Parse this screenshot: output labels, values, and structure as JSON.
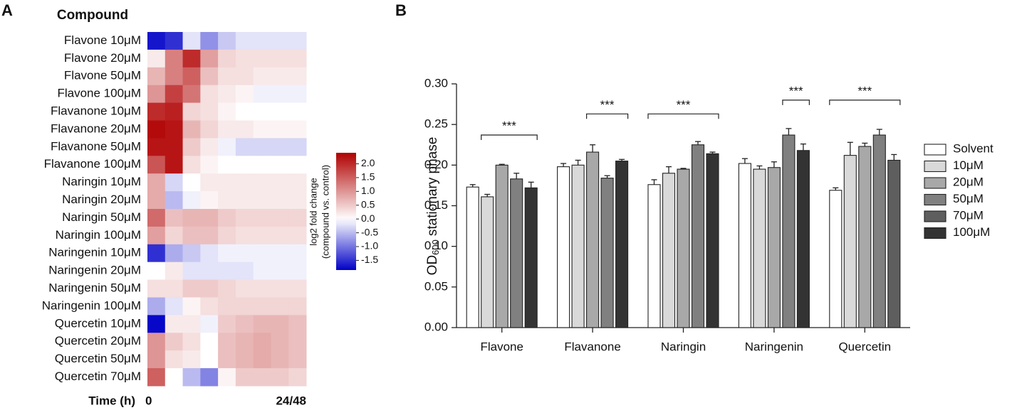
{
  "panels": [
    "A",
    "B"
  ],
  "chart_data": [
    {
      "type": "heatmap",
      "row_title": "Compound",
      "x_title": "Time (h)",
      "x_labels": [
        "0",
        "24/48"
      ],
      "rows": [
        "Flavone 10μM",
        "Flavone 20μM",
        "Flavone 50μM",
        "Flavone 100μM",
        "Flavanone 10μM",
        "Flavanone 20μM",
        "Flavanone 50μM",
        "Flavanone 100μM",
        "Naringin 10μM",
        "Naringin 20μM",
        "Naringin 50μM",
        "Naringin 100μM",
        "Naringenin 10μM",
        "Naringenin 20μM",
        "Naringenin 50μM",
        "Naringenin 100μM",
        "Quercetin 10μM",
        "Quercetin 20μM",
        "Quercetin 50μM",
        "Quercetin 70μM"
      ],
      "values": [
        [
          -1.7,
          -1.5,
          -0.2,
          -0.8,
          -0.4,
          -0.2,
          -0.2,
          -0.2,
          -0.2
        ],
        [
          0.2,
          1.2,
          2.0,
          0.9,
          0.4,
          0.3,
          0.3,
          0.3,
          0.3
        ],
        [
          0.7,
          1.2,
          1.5,
          0.6,
          0.3,
          0.3,
          0.2,
          0.2,
          0.2
        ],
        [
          1.0,
          1.8,
          1.3,
          0.3,
          0.2,
          0.1,
          -0.1,
          -0.1,
          -0.1
        ],
        [
          2.0,
          2.1,
          0.4,
          0.3,
          0.1,
          0.0,
          0.0,
          0.0,
          0.0
        ],
        [
          2.3,
          2.2,
          0.7,
          0.4,
          0.2,
          0.2,
          0.1,
          0.1,
          0.1
        ],
        [
          2.2,
          2.2,
          0.5,
          0.2,
          -0.1,
          -0.3,
          -0.3,
          -0.3,
          -0.3
        ],
        [
          1.6,
          2.2,
          0.3,
          0.1,
          0.0,
          0.0,
          0.0,
          0.0,
          0.0
        ],
        [
          0.8,
          -0.3,
          0.0,
          0.2,
          0.2,
          0.2,
          0.2,
          0.2,
          0.2
        ],
        [
          0.8,
          -0.5,
          -0.1,
          0.1,
          0.2,
          0.2,
          0.2,
          0.2,
          0.2
        ],
        [
          1.4,
          0.6,
          0.7,
          0.7,
          0.5,
          0.4,
          0.4,
          0.4,
          0.4
        ],
        [
          0.9,
          0.4,
          0.6,
          0.6,
          0.4,
          0.3,
          0.3,
          0.3,
          0.3
        ],
        [
          -1.5,
          -0.6,
          -0.4,
          -0.2,
          -0.1,
          -0.1,
          -0.1,
          -0.1,
          -0.1
        ],
        [
          0.0,
          0.2,
          -0.2,
          -0.2,
          -0.2,
          -0.2,
          -0.1,
          -0.1,
          -0.1
        ],
        [
          0.3,
          0.3,
          0.5,
          0.5,
          0.4,
          0.3,
          0.3,
          0.3,
          0.3
        ],
        [
          -0.6,
          -0.2,
          0.1,
          0.3,
          0.4,
          0.4,
          0.4,
          0.4,
          0.4
        ],
        [
          -1.8,
          0.2,
          0.2,
          -0.1,
          0.5,
          0.6,
          0.7,
          0.7,
          0.6
        ],
        [
          1.0,
          0.5,
          0.3,
          0.0,
          0.6,
          0.7,
          0.8,
          0.7,
          0.6
        ],
        [
          1.0,
          0.3,
          0.2,
          0.0,
          0.6,
          0.7,
          0.8,
          0.7,
          0.6
        ],
        [
          1.5,
          0.0,
          -0.5,
          -0.9,
          0.1,
          0.5,
          0.5,
          0.5,
          0.4
        ]
      ],
      "zlim": [
        -1.85,
        2.4
      ],
      "zticks": [
        {
          "value": 2,
          "label": "2.0"
        },
        1.5,
        {
          "value": 1,
          "label": "1.0"
        },
        0.5,
        {
          "value": 0,
          "label": "0.0"
        },
        -0.5,
        {
          "value": -1,
          "label": "-1.0"
        },
        -1.5
      ],
      "colorbar_label": [
        "log2 fold change",
        "(compound vs. control)"
      ],
      "colors": {
        "low": "#0000c8",
        "mid": "#ffffff",
        "high": "#b00000"
      }
    },
    {
      "type": "bar",
      "ylabel": [
        "OD",
        "600",
        "stationary phase"
      ],
      "categories": [
        "Flavone",
        "Flavanone",
        "Naringin",
        "Naringenin",
        "Quercetin"
      ],
      "series": [
        {
          "name": "Solvent",
          "color": "#ffffff",
          "values": [
            0.173,
            0.198,
            0.176,
            0.202,
            0.169
          ],
          "errors": [
            0.003,
            0.004,
            0.006,
            0.006,
            0.003
          ]
        },
        {
          "name": "10μM",
          "color": "#d9d9d9",
          "values": [
            0.161,
            0.2,
            0.19,
            0.195,
            0.212
          ],
          "errors": [
            0.003,
            0.006,
            0.008,
            0.004,
            0.016
          ]
        },
        {
          "name": "20μM",
          "color": "#a8a8a8",
          "values": [
            0.2,
            0.216,
            0.195,
            0.197,
            0.223
          ],
          "errors": [
            0.001,
            0.009,
            0.001,
            0.007,
            0.004
          ]
        },
        {
          "name": "50μM",
          "color": "#808080",
          "values": [
            0.183,
            0.184,
            0.225,
            0.237,
            0.237
          ],
          "errors": [
            0.007,
            0.003,
            0.004,
            0.008,
            0.007
          ]
        },
        {
          "name": "70μM",
          "color": "#5e5e5e",
          "values": [
            null,
            null,
            null,
            null,
            0.206
          ],
          "errors": [
            null,
            null,
            null,
            null,
            0.007
          ]
        },
        {
          "name": "100μM",
          "color": "#333333",
          "values": [
            0.172,
            0.205,
            0.214,
            0.218,
            null
          ],
          "errors": [
            0.007,
            0.002,
            0.002,
            0.008,
            null
          ]
        }
      ],
      "ylim": [
        0,
        0.3
      ],
      "yticks": [
        {
          "value": 0,
          "label": "0.00"
        },
        {
          "value": 0.05,
          "label": "0.05"
        },
        {
          "value": 0.1,
          "label": "0.10"
        },
        {
          "value": 0.15,
          "label": "0.15"
        },
        {
          "value": 0.2,
          "label": "0.20"
        },
        {
          "value": 0.25,
          "label": "0.25"
        },
        {
          "value": 0.3,
          "label": "0.30"
        }
      ],
      "annotations": [
        {
          "text": "***",
          "category": 0,
          "from_series": 1,
          "to_series": 5,
          "y": 0.237
        },
        {
          "text": "***",
          "category": 1,
          "from_series": 2,
          "to_series": 5,
          "y": 0.263
        },
        {
          "text": "***",
          "category": 2,
          "from_series": 0,
          "to_series": 5,
          "y": 0.263
        },
        {
          "text": "***",
          "category": 3,
          "from_series": 3,
          "to_series": 5,
          "y": 0.28
        },
        {
          "text": "***",
          "category": 4,
          "from_series": 0,
          "to_series": 4,
          "y": 0.28
        }
      ],
      "legend": "right"
    }
  ]
}
